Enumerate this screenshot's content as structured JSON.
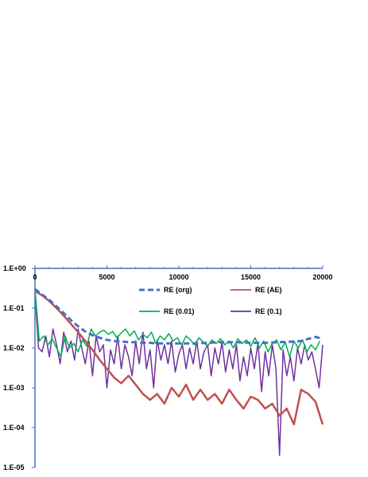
{
  "chart_data": {
    "type": "line",
    "title": "",
    "xlabel": "",
    "ylabel": "",
    "xlim": [
      0,
      20000
    ],
    "ylim": [
      1e-05,
      1
    ],
    "yscale": "log",
    "x_axis_position": "top",
    "grid": false,
    "legend_placement": "top-right, inside plot",
    "x_ticks": [
      0,
      5000,
      10000,
      15000,
      20000
    ],
    "x_tick_labels": [
      "0",
      "5000",
      "10000",
      "15000",
      "20000"
    ],
    "y_ticks": [
      1,
      0.1,
      0.01,
      0.001,
      0.0001,
      1e-05
    ],
    "y_tick_labels": [
      "1.E+00",
      "1.E-01",
      "1.E-02",
      "1.E-03",
      "1.E-04",
      "1.E-05"
    ],
    "series": [
      {
        "name": "RE (org)",
        "color": "#4472c4",
        "style": "dashed",
        "x": [
          0,
          500,
          1000,
          1500,
          2000,
          2500,
          3000,
          3500,
          4000,
          4500,
          5000,
          5500,
          6000,
          6500,
          7000,
          7500,
          8000,
          8500,
          9000,
          10000,
          11000,
          12000,
          13000,
          14000,
          15000,
          16000,
          17000,
          18000,
          18500,
          19000,
          19500,
          20000
        ],
        "values": [
          0.3,
          0.22,
          0.16,
          0.11,
          0.075,
          0.05,
          0.035,
          0.026,
          0.021,
          0.018,
          0.016,
          0.015,
          0.0145,
          0.014,
          0.014,
          0.0135,
          0.0135,
          0.013,
          0.013,
          0.013,
          0.013,
          0.0135,
          0.014,
          0.014,
          0.0135,
          0.0135,
          0.014,
          0.0145,
          0.015,
          0.017,
          0.019,
          0.017
        ]
      },
      {
        "name": "RE (AE)",
        "color": "#c0504d",
        "style": "solid",
        "x": [
          0,
          500,
          1000,
          1500,
          2000,
          2500,
          3000,
          3500,
          4000,
          4500,
          5000,
          5500,
          6000,
          6500,
          7000,
          7500,
          8000,
          8500,
          9000,
          9500,
          10000,
          10500,
          11000,
          11500,
          12000,
          12500,
          13000,
          13500,
          14000,
          14500,
          15000,
          15500,
          16000,
          16500,
          17000,
          17500,
          18000,
          18500,
          19000,
          19500,
          20000
        ],
        "values": [
          0.27,
          0.21,
          0.15,
          0.1,
          0.065,
          0.04,
          0.025,
          0.015,
          0.009,
          0.005,
          0.003,
          0.0018,
          0.0013,
          0.002,
          0.0012,
          0.0007,
          0.0005,
          0.0007,
          0.0004,
          0.001,
          0.0006,
          0.0012,
          0.0005,
          0.0009,
          0.0005,
          0.0007,
          0.0004,
          0.0009,
          0.0005,
          0.0003,
          0.0006,
          0.0005,
          0.0003,
          0.0004,
          0.0002,
          0.0003,
          0.00012,
          0.0009,
          0.0007,
          0.00045,
          0.00012
        ]
      },
      {
        "name": "RE (0.01)",
        "color": "#00b050",
        "style": "solid",
        "x": [
          0,
          300,
          600,
          900,
          1200,
          1500,
          1800,
          2100,
          2400,
          2700,
          3000,
          3300,
          3600,
          3900,
          4200,
          4500,
          4800,
          5100,
          5400,
          5700,
          6000,
          6300,
          6600,
          6900,
          7200,
          7500,
          7800,
          8100,
          8400,
          8700,
          9000,
          9300,
          9600,
          9900,
          10200,
          10500,
          10800,
          11100,
          11400,
          11700,
          12000,
          12300,
          12600,
          12900,
          13200,
          13500,
          13800,
          14100,
          14400,
          14700,
          15000,
          15300,
          15600,
          15900,
          16200,
          16500,
          16800,
          17100,
          17400,
          17700,
          18000,
          18300,
          18600,
          18900,
          19200,
          19500,
          19800
        ],
        "values": [
          0.3,
          0.015,
          0.02,
          0.012,
          0.017,
          0.01,
          0.006,
          0.02,
          0.01,
          0.013,
          0.008,
          0.016,
          0.011,
          0.03,
          0.02,
          0.025,
          0.028,
          0.022,
          0.026,
          0.018,
          0.024,
          0.03,
          0.02,
          0.027,
          0.016,
          0.022,
          0.018,
          0.025,
          0.013,
          0.02,
          0.016,
          0.023,
          0.015,
          0.018,
          0.012,
          0.02,
          0.016,
          0.012,
          0.018,
          0.014,
          0.011,
          0.016,
          0.013,
          0.017,
          0.012,
          0.015,
          0.01,
          0.017,
          0.013,
          0.016,
          0.011,
          0.018,
          0.01,
          0.015,
          0.008,
          0.013,
          0.016,
          0.009,
          0.014,
          0.006,
          0.015,
          0.01,
          0.016,
          0.008,
          0.012,
          0.009,
          0.015
        ]
      },
      {
        "name": "RE (0.1)",
        "color": "#7030a0",
        "style": "solid",
        "x": [
          0,
          250,
          500,
          750,
          1000,
          1250,
          1500,
          1750,
          2000,
          2250,
          2500,
          2750,
          3000,
          3250,
          3500,
          3750,
          4000,
          4250,
          4500,
          4750,
          5000,
          5250,
          5500,
          5750,
          6000,
          6250,
          6500,
          6750,
          7000,
          7250,
          7500,
          7750,
          8000,
          8250,
          8500,
          8750,
          9000,
          9250,
          9500,
          9750,
          10000,
          10250,
          10500,
          10750,
          11000,
          11250,
          11500,
          11750,
          12000,
          12250,
          12500,
          12750,
          13000,
          13250,
          13500,
          13750,
          14000,
          14250,
          14500,
          14750,
          15000,
          15250,
          15500,
          15750,
          16000,
          16250,
          16500,
          16750,
          17000,
          17250,
          17500,
          17750,
          18000,
          18250,
          18500,
          18750,
          19000,
          19250,
          19500,
          19750,
          20000
        ],
        "values": [
          0.25,
          0.01,
          0.008,
          0.02,
          0.006,
          0.03,
          0.012,
          0.004,
          0.025,
          0.008,
          0.015,
          0.005,
          0.03,
          0.01,
          0.004,
          0.015,
          0.002,
          0.02,
          0.008,
          0.012,
          0.001,
          0.009,
          0.004,
          0.02,
          0.003,
          0.012,
          0.006,
          0.002,
          0.015,
          0.004,
          0.025,
          0.003,
          0.009,
          0.001,
          0.016,
          0.005,
          0.012,
          0.004,
          0.015,
          0.0025,
          0.007,
          0.012,
          0.003,
          0.01,
          0.004,
          0.015,
          0.003,
          0.008,
          0.012,
          0.002,
          0.01,
          0.004,
          0.014,
          0.0025,
          0.009,
          0.003,
          0.012,
          0.0015,
          0.006,
          0.002,
          0.01,
          0.003,
          0.014,
          0.0008,
          0.008,
          0.002,
          0.012,
          0.003,
          2e-05,
          0.009,
          0.002,
          0.006,
          0.0015,
          0.01,
          0.004,
          0.012,
          0.005,
          0.008,
          0.003,
          0.001,
          0.012
        ]
      }
    ]
  }
}
